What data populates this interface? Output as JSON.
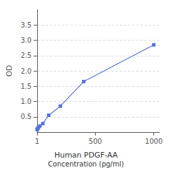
{
  "chart_data": {
    "type": "line",
    "title": "Human PDGF-AA",
    "xlabel": "Concentration (pg/ml)",
    "ylabel": "OD",
    "x": [
      1.56,
      3.12,
      6.25,
      12.5,
      25,
      50,
      100,
      200,
      400,
      1000
    ],
    "values": [
      0.08,
      0.1,
      0.12,
      0.15,
      0.2,
      0.28,
      0.55,
      0.85,
      1.65,
      2.85
    ],
    "marker": "square",
    "xlim": [
      0,
      1050
    ],
    "xticks": [
      1,
      500,
      1000
    ],
    "ylim": [
      0,
      4.0
    ],
    "yticks": [
      0.5,
      {
        "value": 1.0,
        "label": "1.0"
      },
      1.5,
      {
        "value": 2.0,
        "label": "2.0"
      },
      2.5,
      {
        "value": 3.0,
        "label": "3.0"
      },
      3.5
    ],
    "grid": true
  }
}
